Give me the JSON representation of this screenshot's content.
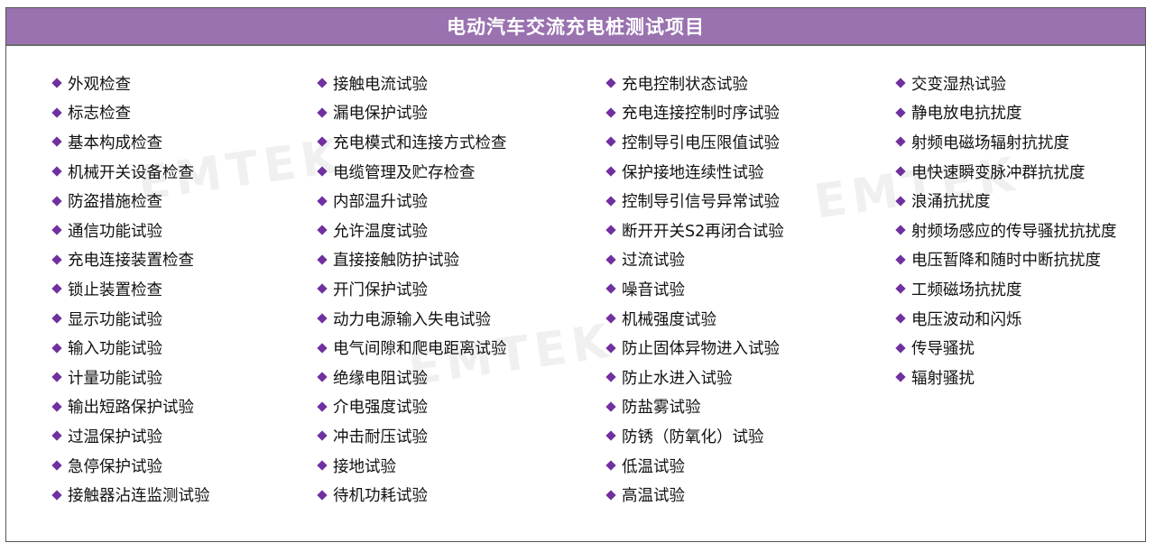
{
  "title": "电动汽车交流充电桩测试项目",
  "watermark": "EMTEK",
  "accent_color": "#9a72b0",
  "bullet_color": "#7030a0",
  "bullet_icon": "diamond-icon",
  "columns": [
    [
      "外观检查",
      "标志检查",
      "基本构成检查",
      "机械开关设备检查",
      "防盗措施检查",
      "通信功能试验",
      "充电连接装置检查",
      "锁止装置检查",
      "显示功能试验",
      "输入功能试验",
      "计量功能试验",
      "输出短路保护试验",
      "过温保护试验",
      "急停保护试验",
      "接触器沾连监测试验"
    ],
    [
      "接触电流试验",
      "漏电保护试验",
      "充电模式和连接方式检查",
      "电缆管理及贮存检查",
      "内部温升试验",
      "允许温度试验",
      "直接接触防护试验",
      "开门保护试验",
      "动力电源输入失电试验",
      "电气间隙和爬电距离试验",
      "绝缘电阻试验",
      "介电强度试验",
      "冲击耐压试验",
      "接地试验",
      "待机功耗试验"
    ],
    [
      "充电控制状态试验",
      "充电连接控制时序试验",
      "控制导引电压限值试验",
      "保护接地连续性试验",
      "控制导引信号异常试验",
      "断开开关S2再闭合试验",
      "过流试验",
      "噪音试验",
      "机械强度试验",
      "防止固体异物进入试验",
      "防止水进入试验",
      "防盐雾试验",
      "防锈（防氧化）试验",
      "低温试验",
      "高温试验"
    ],
    [
      "交变湿热试验",
      "静电放电抗扰度",
      "射频电磁场辐射抗扰度",
      "电快速瞬变脉冲群抗扰度",
      "浪涌抗扰度",
      "射频场感应的传导骚扰抗扰度",
      "电压暂降和随时中断抗扰度",
      "工频磁场抗扰度",
      "电压波动和闪烁",
      "传导骚扰",
      "辐射骚扰"
    ]
  ]
}
